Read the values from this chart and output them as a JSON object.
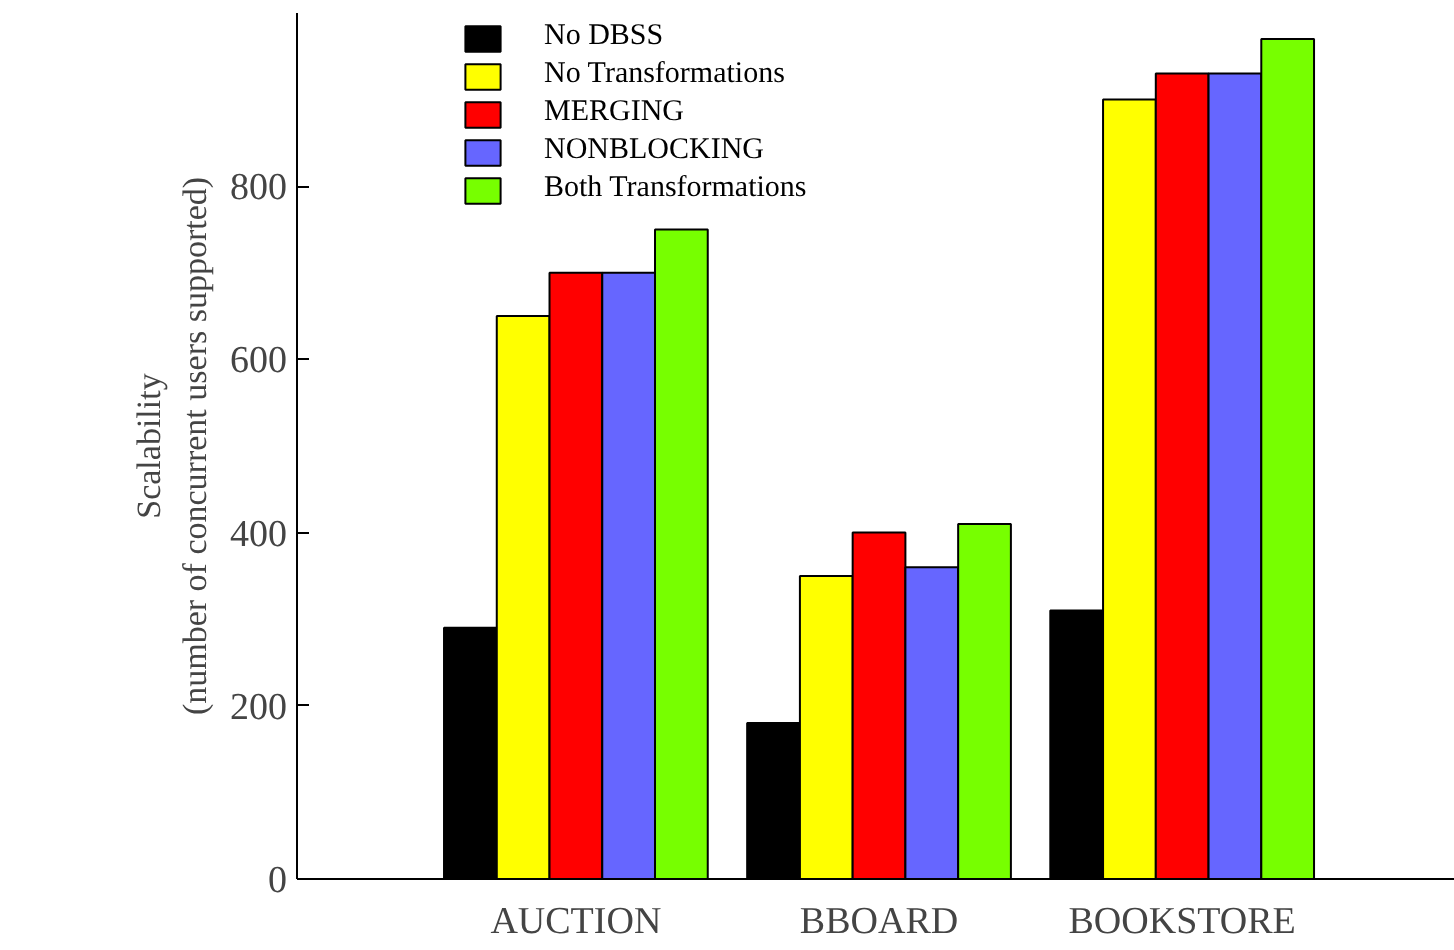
{
  "chart_data": {
    "type": "bar",
    "ylabel": "Scalability\n(number of concurrent users supported)",
    "categories": [
      "AUCTION",
      "BBOARD",
      "BOOKSTORE"
    ],
    "series": [
      {
        "name": "No DBSS",
        "color": "#000000",
        "values": [
          290,
          180,
          310
        ]
      },
      {
        "name": "No Transformations",
        "color": "#ffff00",
        "values": [
          650,
          350,
          900
        ]
      },
      {
        "name": "MERGING",
        "color": "#ff0000",
        "values": [
          700,
          400,
          930
        ]
      },
      {
        "name": "NONBLOCKING",
        "color": "#6666ff",
        "values": [
          700,
          360,
          930
        ]
      },
      {
        "name": "Both Transformations",
        "color": "#77ff00",
        "values": [
          750,
          410,
          970
        ]
      }
    ],
    "ylim": [
      0,
      1000
    ],
    "yticks": [
      0,
      200,
      400,
      600,
      800
    ],
    "grid": false,
    "legend": "top left"
  }
}
